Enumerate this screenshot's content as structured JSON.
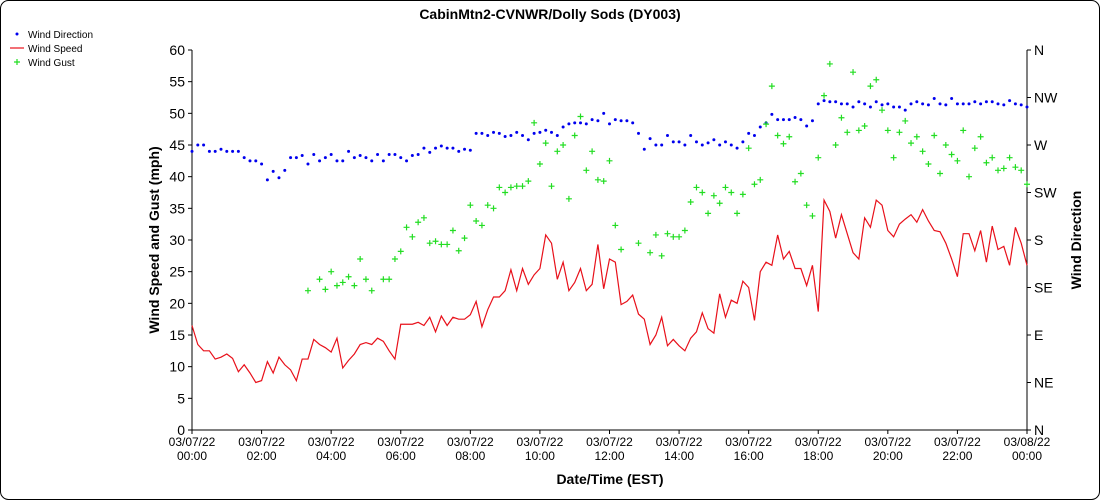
{
  "chart_data": {
    "type": "line",
    "title": "CabinMtn2-CVNWR/Dolly Sods (DY003)",
    "xlabel": "Date/Time (EST)",
    "ylabel": "Wind Speed and Gust (mph)",
    "y2label": "Wind Direction",
    "legend": "top-left",
    "xlim": [
      "03/07/22 00:00",
      "03/08/22 00:00"
    ],
    "xticks": [
      "03/07/22 00:00",
      "03/07/22 02:00",
      "03/07/22 04:00",
      "03/07/22 06:00",
      "03/07/22 08:00",
      "03/07/22 10:00",
      "03/07/22 12:00",
      "03/07/22 14:00",
      "03/07/22 16:00",
      "03/07/22 18:00",
      "03/07/22 20:00",
      "03/07/22 22:00",
      "03/08/22 00:00"
    ],
    "ylim": [
      0,
      60
    ],
    "yticks": [
      0,
      5,
      10,
      15,
      20,
      25,
      30,
      35,
      40,
      45,
      50,
      55,
      60
    ],
    "y2lim": [
      0,
      360
    ],
    "y2ticks": [
      {
        "value": 0,
        "label": "N"
      },
      {
        "value": 45,
        "label": "NE"
      },
      {
        "value": 90,
        "label": "E"
      },
      {
        "value": 135,
        "label": "SE"
      },
      {
        "value": 180,
        "label": "S"
      },
      {
        "value": 225,
        "label": "SW"
      },
      {
        "value": 270,
        "label": "W"
      },
      {
        "value": 315,
        "label": "NW"
      },
      {
        "value": 360,
        "label": "N"
      }
    ],
    "x": [
      "03/07/22 00:00",
      "03/07/22 00:10",
      "03/07/22 00:20",
      "03/07/22 00:30",
      "03/07/22 00:40",
      "03/07/22 00:50",
      "03/07/22 01:00",
      "03/07/22 01:10",
      "03/07/22 01:20",
      "03/07/22 01:30",
      "03/07/22 01:40",
      "03/07/22 01:50",
      "03/07/22 02:00",
      "03/07/22 02:10",
      "03/07/22 02:20",
      "03/07/22 02:30",
      "03/07/22 02:40",
      "03/07/22 02:50",
      "03/07/22 03:00",
      "03/07/22 03:10",
      "03/07/22 03:20",
      "03/07/22 03:30",
      "03/07/22 03:40",
      "03/07/22 03:50",
      "03/07/22 04:00",
      "03/07/22 04:10",
      "03/07/22 04:20",
      "03/07/22 04:30",
      "03/07/22 04:40",
      "03/07/22 04:50",
      "03/07/22 05:00",
      "03/07/22 05:10",
      "03/07/22 05:20",
      "03/07/22 05:30",
      "03/07/22 05:40",
      "03/07/22 05:50",
      "03/07/22 06:00",
      "03/07/22 06:10",
      "03/07/22 06:20",
      "03/07/22 06:30",
      "03/07/22 06:40",
      "03/07/22 06:50",
      "03/07/22 07:00",
      "03/07/22 07:10",
      "03/07/22 07:20",
      "03/07/22 07:30",
      "03/07/22 07:40",
      "03/07/22 07:50",
      "03/07/22 08:00",
      "03/07/22 08:10",
      "03/07/22 08:20",
      "03/07/22 08:30",
      "03/07/22 08:40",
      "03/07/22 08:50",
      "03/07/22 09:00",
      "03/07/22 09:10",
      "03/07/22 09:20",
      "03/07/22 09:30",
      "03/07/22 09:40",
      "03/07/22 09:50",
      "03/07/22 10:00",
      "03/07/22 10:10",
      "03/07/22 10:20",
      "03/07/22 10:30",
      "03/07/22 10:40",
      "03/07/22 10:50",
      "03/07/22 11:00",
      "03/07/22 11:10",
      "03/07/22 11:20",
      "03/07/22 11:30",
      "03/07/22 11:40",
      "03/07/22 11:50",
      "03/07/22 12:00",
      "03/07/22 12:10",
      "03/07/22 12:20",
      "03/07/22 12:30",
      "03/07/22 12:40",
      "03/07/22 12:50",
      "03/07/22 13:00",
      "03/07/22 13:10",
      "03/07/22 13:20",
      "03/07/22 13:30",
      "03/07/22 13:40",
      "03/07/22 13:50",
      "03/07/22 14:00",
      "03/07/22 14:10",
      "03/07/22 14:20",
      "03/07/22 14:30",
      "03/07/22 14:40",
      "03/07/22 14:50",
      "03/07/22 15:00",
      "03/07/22 15:10",
      "03/07/22 15:20",
      "03/07/22 15:30",
      "03/07/22 15:40",
      "03/07/22 15:50",
      "03/07/22 16:00",
      "03/07/22 16:10",
      "03/07/22 16:20",
      "03/07/22 16:30",
      "03/07/22 16:40",
      "03/07/22 16:50",
      "03/07/22 17:00",
      "03/07/22 17:10",
      "03/07/22 17:20",
      "03/07/22 17:30",
      "03/07/22 17:40",
      "03/07/22 17:50",
      "03/07/22 18:00",
      "03/07/22 18:10",
      "03/07/22 18:20",
      "03/07/22 18:30",
      "03/07/22 18:40",
      "03/07/22 18:50",
      "03/07/22 19:00",
      "03/07/22 19:10",
      "03/07/22 19:20",
      "03/07/22 19:30",
      "03/07/22 19:40",
      "03/07/22 19:50",
      "03/07/22 20:00",
      "03/07/22 20:10",
      "03/07/22 20:20",
      "03/07/22 20:30",
      "03/07/22 20:40",
      "03/07/22 20:50",
      "03/07/22 21:00",
      "03/07/22 21:10",
      "03/07/22 21:20",
      "03/07/22 21:30",
      "03/07/22 21:40",
      "03/07/22 21:50",
      "03/07/22 22:00",
      "03/07/22 22:10",
      "03/07/22 22:20",
      "03/07/22 22:30",
      "03/07/22 22:40",
      "03/07/22 22:50",
      "03/07/22 23:00",
      "03/07/22 23:10",
      "03/07/22 23:20",
      "03/07/22 23:30",
      "03/07/22 23:40",
      "03/07/22 23:50",
      "03/08/22 00:00"
    ],
    "series": [
      {
        "name": "Wind Direction",
        "color": "#0000ee",
        "style": "dots",
        "axis": "y2",
        "values": [
          264,
          270,
          270,
          264,
          264,
          266,
          264,
          264,
          264,
          258,
          255,
          255,
          252,
          237,
          245,
          239,
          246,
          258,
          258,
          260,
          252,
          261,
          255,
          258,
          261,
          255,
          255,
          264,
          258,
          260,
          258,
          255,
          261,
          255,
          261,
          261,
          258,
          255,
          260,
          261,
          267,
          263,
          267,
          269,
          267,
          267,
          264,
          266,
          265,
          281,
          281,
          279,
          282,
          281,
          278,
          279,
          282,
          279,
          275,
          281,
          282,
          284,
          282,
          279,
          287,
          290,
          291,
          291,
          290,
          294,
          293,
          300,
          290,
          294,
          293,
          293,
          291,
          281,
          266,
          276,
          270,
          270,
          279,
          273,
          273,
          270,
          279,
          273,
          270,
          272,
          275,
          270,
          273,
          270,
          267,
          273,
          281,
          279,
          287,
          291,
          299,
          294,
          294,
          294,
          296,
          294,
          288,
          293,
          309,
          312,
          311,
          311,
          309,
          309,
          306,
          311,
          309,
          306,
          311,
          308,
          309,
          306,
          306,
          303,
          309,
          311,
          309,
          308,
          314,
          309,
          308,
          314,
          309,
          309,
          309,
          311,
          309,
          311,
          311,
          309,
          308,
          312,
          309,
          308,
          306
        ]
      },
      {
        "name": "Wind Speed",
        "color": "#e8101a",
        "style": "line",
        "values": [
          16.5,
          13.5,
          12.5,
          12.5,
          11.2,
          11.5,
          12,
          11.3,
          9.2,
          10.3,
          9,
          7.5,
          7.8,
          10.8,
          9,
          11.5,
          10.3,
          9.5,
          7.8,
          11.2,
          11.2,
          14.3,
          13.5,
          13,
          12.3,
          14.5,
          9.8,
          11,
          12,
          13.5,
          13.8,
          13.5,
          14.5,
          14,
          12.5,
          11.2,
          16.7,
          16.7,
          16.7,
          17,
          16.5,
          17.8,
          15.5,
          18,
          16.5,
          17.8,
          17.5,
          17.5,
          18.2,
          20.3,
          16.3,
          19,
          21,
          21,
          22,
          25.3,
          22,
          25.5,
          23,
          24.5,
          25.5,
          30.8,
          29.5,
          23.8,
          26.5,
          22,
          23.3,
          25.5,
          22,
          23,
          29.3,
          22.3,
          27,
          26.5,
          19.8,
          20.3,
          21.3,
          18.3,
          17.5,
          13.5,
          15,
          17.8,
          13.3,
          14.3,
          13.3,
          12.5,
          14.5,
          15.5,
          18.5,
          16,
          15.3,
          21.5,
          17.8,
          20.5,
          20,
          23.5,
          22.5,
          17.3,
          25,
          26.5,
          26,
          30.8,
          27,
          28.2,
          25.5,
          25.5,
          22.8,
          26,
          18.7,
          36.3,
          34.5,
          30.3,
          34,
          31,
          28,
          27,
          33.5,
          32,
          36.3,
          35.5,
          31.5,
          30.5,
          32.5,
          33.3,
          34,
          32.8,
          34.8,
          33,
          31.5,
          31.3,
          29.5,
          27,
          24.2,
          31,
          31,
          28.3,
          31.5,
          26.5,
          32.2,
          28.5,
          29,
          26,
          32,
          29.5,
          26
        ]
      },
      {
        "name": "Wind Gust",
        "color": "#22dd22",
        "style": "plus",
        "values": [
          null,
          null,
          null,
          null,
          null,
          null,
          null,
          null,
          null,
          null,
          null,
          null,
          null,
          null,
          null,
          null,
          null,
          null,
          null,
          null,
          22,
          null,
          23.8,
          22.2,
          25,
          22.8,
          23.3,
          24.2,
          22.8,
          27,
          23.8,
          22,
          null,
          23.8,
          23.8,
          27,
          28.2,
          32,
          30.5,
          32.8,
          33.5,
          29.5,
          29.8,
          29.3,
          29.3,
          31.5,
          28.3,
          30.3,
          35.5,
          33,
          32.3,
          35.5,
          35,
          38.3,
          37.5,
          38.3,
          38.5,
          38.5,
          39.3,
          48.5,
          42,
          45.3,
          38.5,
          44,
          45,
          36.5,
          46.5,
          49.5,
          41,
          44,
          39.5,
          39.3,
          42.5,
          32.3,
          28.5,
          null,
          null,
          29.5,
          null,
          28,
          30.8,
          27.5,
          31,
          30.5,
          30.5,
          31.5,
          36,
          38.3,
          37.5,
          34.2,
          37,
          35.8,
          38.3,
          37.5,
          34.2,
          37.2,
          44.5,
          38.8,
          39.5,
          48.3,
          54.3,
          46.5,
          45.2,
          46.3,
          39.2,
          40.5,
          35.5,
          33.8,
          43,
          52.8,
          57.8,
          45,
          49.3,
          47,
          56.5,
          47.3,
          48,
          54.3,
          55.3,
          50.5,
          47.3,
          43,
          47,
          48.8,
          45.3,
          46.3,
          44,
          42,
          46.5,
          40.5,
          45,
          43.5,
          42.5,
          47.3,
          40,
          44.5,
          46.3,
          42.2,
          43,
          41,
          41.3,
          43,
          41.5,
          41,
          38.8
        ]
      }
    ]
  }
}
